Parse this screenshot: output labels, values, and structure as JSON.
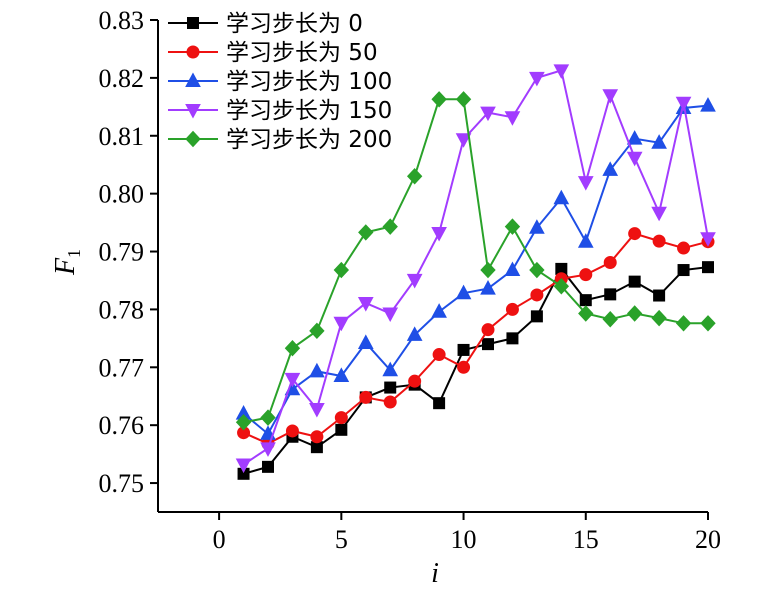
{
  "chart_data": {
    "type": "line",
    "xlabel": "i",
    "ylabel": "F",
    "ylabel_sub": "1",
    "xlim": [
      -2.5,
      20
    ],
    "ylim": [
      0.745,
      0.83
    ],
    "xticks": [
      0,
      5,
      10,
      15,
      20
    ],
    "yticks": [
      0.75,
      0.76,
      0.77,
      0.78,
      0.79,
      0.8,
      0.81,
      0.82,
      0.83
    ],
    "ytick_labels": [
      "0.75",
      "0.76",
      "0.77",
      "0.78",
      "0.79",
      "0.80",
      "0.81",
      "0.82",
      "0.83"
    ],
    "grid": false,
    "legend_position": "top-left",
    "x": [
      1,
      2,
      3,
      4,
      5,
      6,
      7,
      8,
      9,
      10,
      11,
      12,
      13,
      14,
      15,
      16,
      17,
      18,
      19,
      20
    ],
    "series": [
      {
        "name": "学习步长为 0",
        "color": "#000000",
        "marker": "square",
        "values": [
          0.7516,
          0.7528,
          0.758,
          0.7562,
          0.7592,
          0.7648,
          0.7665,
          0.767,
          0.7638,
          0.773,
          0.774,
          0.775,
          0.7788,
          0.787,
          0.7816,
          0.7826,
          0.7848,
          0.7824,
          0.7868,
          0.7873
        ]
      },
      {
        "name": "学习步长为 50",
        "color": "#ee1111",
        "marker": "circle",
        "values": [
          0.7587,
          0.7568,
          0.759,
          0.758,
          0.7613,
          0.7648,
          0.764,
          0.7676,
          0.7722,
          0.77,
          0.7765,
          0.78,
          0.7825,
          0.7853,
          0.786,
          0.7881,
          0.7931,
          0.7918,
          0.7906,
          0.7917
        ]
      },
      {
        "name": "学习步长为 100",
        "color": "#1f4fe6",
        "marker": "triangle-up",
        "values": [
          0.762,
          0.7585,
          0.7662,
          0.7693,
          0.7685,
          0.7742,
          0.7695,
          0.7756,
          0.7796,
          0.7828,
          0.7836,
          0.7868,
          0.7941,
          0.7992,
          0.7917,
          0.8041,
          0.8095,
          0.8088,
          0.8148,
          0.8152
        ]
      },
      {
        "name": "学习步长为 150",
        "color": "#a23cff",
        "marker": "triangle-down",
        "values": [
          0.7532,
          0.756,
          0.768,
          0.7628,
          0.7777,
          0.7811,
          0.7793,
          0.7851,
          0.7932,
          0.8094,
          0.814,
          0.8132,
          0.82,
          0.8213,
          0.802,
          0.817,
          0.8062,
          0.7967,
          0.8157,
          0.7923
        ]
      },
      {
        "name": "学习步长为 200",
        "color": "#2aa22a",
        "marker": "diamond",
        "values": [
          0.7605,
          0.7613,
          0.7733,
          0.7763,
          0.7868,
          0.7933,
          0.7943,
          0.803,
          0.8163,
          0.8163,
          0.7868,
          0.7943,
          0.7868,
          0.784,
          0.7793,
          0.7783,
          0.7793,
          0.7785,
          0.7776,
          0.7776
        ]
      }
    ]
  }
}
